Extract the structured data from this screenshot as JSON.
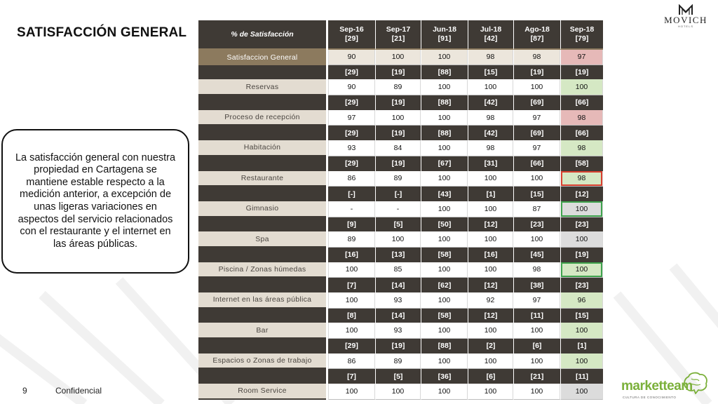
{
  "slide": {
    "title": "SATISFACCIÓN GENERAL",
    "callout": "La satisfacción general con nuestra propiedad en Cartagena se mantiene estable respecto a la medición anterior, a excepción de unas ligeras variaciones en aspectos del servicio relacionados con el restaurante y el internet en las áreas públicas.",
    "page_number": "9",
    "confidential": "Confidencial"
  },
  "brand": {
    "name": "MOVICH",
    "sub": "HOTELS",
    "partner_name": "marketteam",
    "partner_sub": "CULTURA DE CONOCIMIENTO"
  },
  "table": {
    "header_label": "% de Satisfacción",
    "columns": [
      {
        "period": "Sep-16",
        "n": "[29]"
      },
      {
        "period": "Sep-17",
        "n": "[21]"
      },
      {
        "period": "Jun-18",
        "n": "[91]"
      },
      {
        "period": "Jul-18",
        "n": "[42]"
      },
      {
        "period": "Ago-18",
        "n": "[87]"
      },
      {
        "period": "Sep-18",
        "n": "[79]"
      }
    ],
    "general": {
      "label": "Satisfaccion General",
      "values": [
        "90",
        "100",
        "100",
        "98",
        "98",
        "97"
      ],
      "last_status": "red"
    },
    "rows": [
      {
        "label": "Reservas",
        "counts": [
          "[29]",
          "[19]",
          "[88]",
          "[15]",
          "[19]",
          "[19]"
        ],
        "values": [
          "90",
          "89",
          "100",
          "100",
          "100",
          "100"
        ],
        "last_status": "green",
        "last_outline": ""
      },
      {
        "label": "Proceso de recepción",
        "counts": [
          "[29]",
          "[19]",
          "[88]",
          "[42]",
          "[69]",
          "[66]"
        ],
        "values": [
          "97",
          "100",
          "100",
          "98",
          "97",
          "98"
        ],
        "last_status": "red",
        "last_outline": ""
      },
      {
        "label": "Habitación",
        "counts": [
          "[29]",
          "[19]",
          "[88]",
          "[42]",
          "[69]",
          "[66]"
        ],
        "values": [
          "93",
          "84",
          "100",
          "98",
          "97",
          "98"
        ],
        "last_status": "green",
        "last_outline": ""
      },
      {
        "label": "Restaurante",
        "counts": [
          "[29]",
          "[19]",
          "[67]",
          "[31]",
          "[66]",
          "[58]"
        ],
        "values": [
          "86",
          "89",
          "100",
          "100",
          "100",
          "98"
        ],
        "last_status": "green",
        "last_outline": "red"
      },
      {
        "label": "Gimnasio",
        "counts": [
          "[-]",
          "[-]",
          "[43]",
          "[1]",
          "[15]",
          "[12]"
        ],
        "values": [
          "-",
          "-",
          "100",
          "100",
          "87",
          "100"
        ],
        "last_status": "grey",
        "last_outline": "green"
      },
      {
        "label": "Spa",
        "counts": [
          "[9]",
          "[5]",
          "[50]",
          "[12]",
          "[23]",
          "[23]"
        ],
        "values": [
          "89",
          "100",
          "100",
          "100",
          "100",
          "100"
        ],
        "last_status": "grey",
        "last_outline": ""
      },
      {
        "label": "Piscina / Zonas húmedas",
        "counts": [
          "[16]",
          "[13]",
          "[58]",
          "[16]",
          "[45]",
          "[19]"
        ],
        "values": [
          "100",
          "85",
          "100",
          "100",
          "98",
          "100"
        ],
        "last_status": "green",
        "last_outline": "green"
      },
      {
        "label": "Internet en las áreas pública",
        "counts": [
          "[7]",
          "[14]",
          "[62]",
          "[12]",
          "[38]",
          "[23]"
        ],
        "values": [
          "100",
          "93",
          "100",
          "92",
          "97",
          "96"
        ],
        "last_status": "green",
        "last_outline": ""
      },
      {
        "label": "Bar",
        "counts": [
          "[8]",
          "[14]",
          "[58]",
          "[12]",
          "[11]",
          "[15]"
        ],
        "values": [
          "100",
          "93",
          "100",
          "100",
          "100",
          "100"
        ],
        "last_status": "green",
        "last_outline": ""
      },
      {
        "label": "Espacios o Zonas de trabajo",
        "counts": [
          "[29]",
          "[19]",
          "[88]",
          "[2]",
          "[6]",
          "[1]"
        ],
        "values": [
          "86",
          "89",
          "100",
          "100",
          "100",
          "100"
        ],
        "last_status": "green",
        "last_outline": ""
      },
      {
        "label": "Room Service",
        "counts": [
          "[7]",
          "[5]",
          "[36]",
          "[6]",
          "[21]",
          "[11]"
        ],
        "values": [
          "100",
          "100",
          "100",
          "100",
          "100",
          "100"
        ],
        "last_status": "grey",
        "last_outline": ""
      }
    ]
  },
  "colors": {
    "dark": "#3f3a35",
    "gold": "#8c7a5e",
    "light": "#e3dcd1",
    "green": "#d5e8c4",
    "red": "#e6b9b8",
    "grey": "#dcdcdc"
  }
}
